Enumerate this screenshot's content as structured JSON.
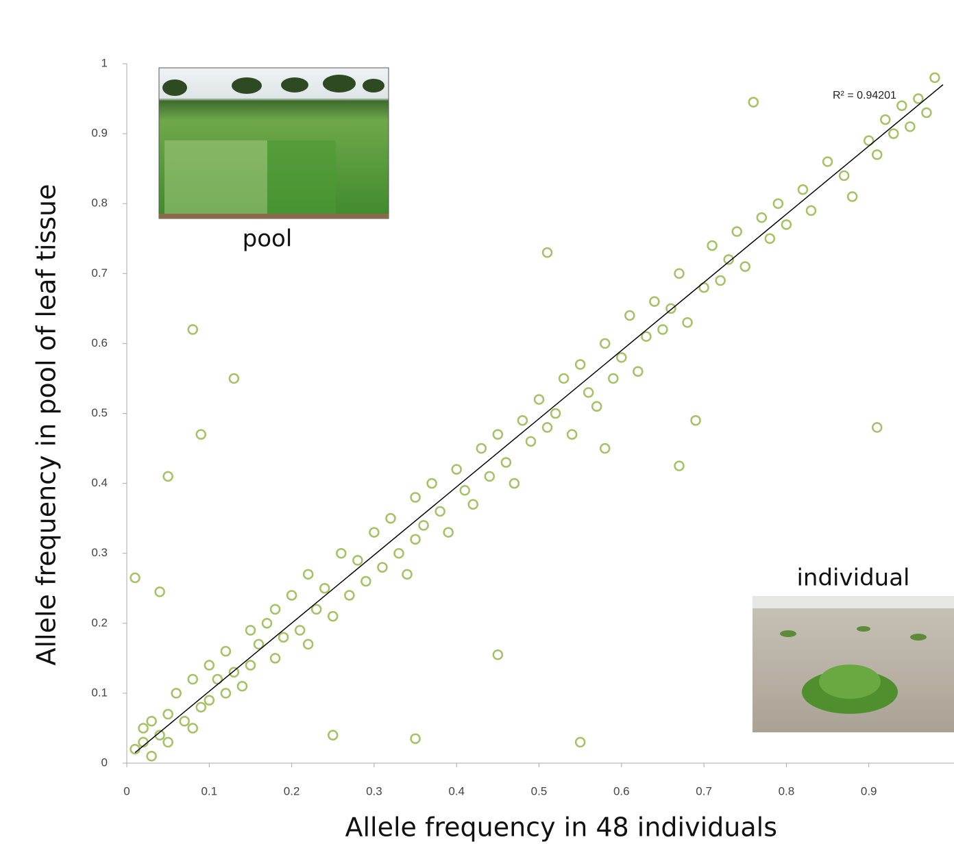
{
  "chart_data": {
    "type": "scatter",
    "x_label": "Allele frequency in 48 individuals",
    "y_label": "Allele frequency in pool of leaf tissue",
    "xlim": [
      0,
      1
    ],
    "ylim": [
      0,
      1
    ],
    "xticks": [
      0,
      0.1,
      0.2,
      0.3,
      0.4,
      0.5,
      0.6,
      0.7,
      0.8,
      0.9
    ],
    "yticks": [
      0,
      0.1,
      0.2,
      0.3,
      0.4,
      0.5,
      0.6,
      0.7,
      0.8,
      0.9,
      1
    ],
    "color": "#a3c266",
    "x": [
      0.01,
      0.02,
      0.02,
      0.03,
      0.03,
      0.04,
      0.05,
      0.05,
      0.06,
      0.07,
      0.08,
      0.08,
      0.09,
      0.1,
      0.1,
      0.11,
      0.12,
      0.12,
      0.13,
      0.14,
      0.15,
      0.15,
      0.16,
      0.17,
      0.18,
      0.18,
      0.19,
      0.2,
      0.21,
      0.22,
      0.22,
      0.23,
      0.24,
      0.25,
      0.26,
      0.27,
      0.28,
      0.29,
      0.3,
      0.31,
      0.32,
      0.33,
      0.34,
      0.35,
      0.35,
      0.36,
      0.37,
      0.38,
      0.39,
      0.4,
      0.41,
      0.42,
      0.43,
      0.44,
      0.45,
      0.46,
      0.47,
      0.48,
      0.49,
      0.5,
      0.51,
      0.52,
      0.53,
      0.54,
      0.55,
      0.56,
      0.57,
      0.58,
      0.59,
      0.6,
      0.61,
      0.62,
      0.63,
      0.64,
      0.65,
      0.66,
      0.67,
      0.68,
      0.7,
      0.71,
      0.72,
      0.73,
      0.74,
      0.75,
      0.77,
      0.78,
      0.79,
      0.8,
      0.82,
      0.83,
      0.85,
      0.87,
      0.88,
      0.9,
      0.91,
      0.92,
      0.93,
      0.94,
      0.95,
      0.96,
      0.97,
      0.98,
      0.08,
      0.13,
      0.09,
      0.05,
      0.01,
      0.04,
      0.91,
      0.55,
      0.35,
      0.25,
      0.45,
      0.76,
      0.51,
      0.67,
      0.69,
      0.58
    ],
    "y": [
      0.02,
      0.03,
      0.05,
      0.01,
      0.06,
      0.04,
      0.07,
      0.03,
      0.1,
      0.06,
      0.12,
      0.05,
      0.08,
      0.14,
      0.09,
      0.12,
      0.1,
      0.16,
      0.13,
      0.11,
      0.19,
      0.14,
      0.17,
      0.2,
      0.15,
      0.22,
      0.18,
      0.24,
      0.19,
      0.17,
      0.27,
      0.22,
      0.25,
      0.21,
      0.3,
      0.24,
      0.29,
      0.26,
      0.33,
      0.28,
      0.35,
      0.3,
      0.27,
      0.38,
      0.32,
      0.34,
      0.4,
      0.36,
      0.33,
      0.42,
      0.39,
      0.37,
      0.45,
      0.41,
      0.47,
      0.43,
      0.4,
      0.49,
      0.46,
      0.52,
      0.48,
      0.5,
      0.55,
      0.47,
      0.57,
      0.53,
      0.51,
      0.6,
      0.55,
      0.58,
      0.64,
      0.56,
      0.61,
      0.66,
      0.62,
      0.65,
      0.7,
      0.63,
      0.68,
      0.74,
      0.69,
      0.72,
      0.76,
      0.71,
      0.78,
      0.75,
      0.8,
      0.77,
      0.82,
      0.79,
      0.86,
      0.84,
      0.81,
      0.89,
      0.87,
      0.92,
      0.9,
      0.94,
      0.91,
      0.95,
      0.93,
      0.98,
      0.62,
      0.55,
      0.47,
      0.41,
      0.265,
      0.245,
      0.48,
      0.03,
      0.035,
      0.04,
      0.155,
      0.945,
      0.73,
      0.425,
      0.49,
      0.45
    ],
    "trendline": {
      "x": [
        0.01,
        0.99
      ],
      "y": [
        0.015,
        0.97
      ],
      "label": "R² = 0.94201"
    },
    "annotations": [
      "pool",
      "individual"
    ]
  }
}
